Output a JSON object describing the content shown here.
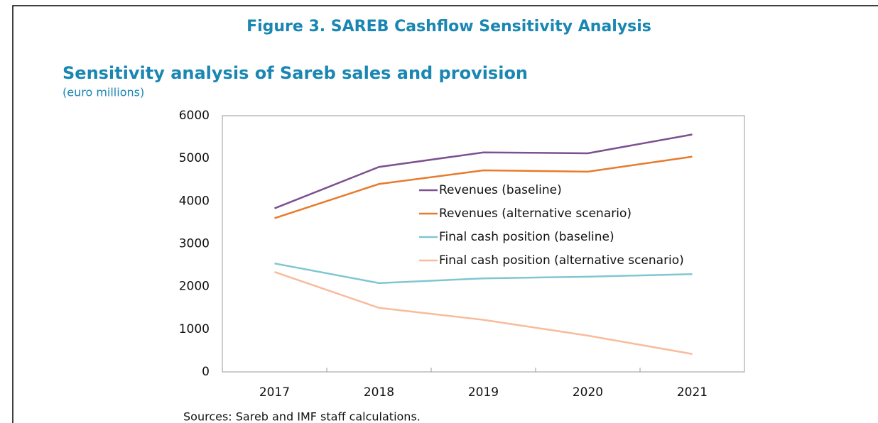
{
  "figure_title": "Figure 3. SAREB Cashflow Sensitivity Analysis",
  "source": "Sources: Sareb and IMF staff calculations.",
  "chart_data": {
    "type": "line",
    "title": "Sensitivity analysis of Sareb sales and provision",
    "subtitle": "(euro millions)",
    "categories": [
      "2017",
      "2018",
      "2019",
      "2020",
      "2021"
    ],
    "series": [
      {
        "name": "Revenues (baseline)",
        "color": "#7b5190",
        "values": [
          3830,
          4800,
          5140,
          5120,
          5560
        ]
      },
      {
        "name": "Revenues (alternative scenario)",
        "color": "#e87a2b",
        "values": [
          3600,
          4400,
          4720,
          4690,
          5040
        ]
      },
      {
        "name": "Final cash position (baseline)",
        "color": "#80c6d2",
        "values": [
          2540,
          2080,
          2190,
          2230,
          2290
        ]
      },
      {
        "name": "Final cash position (alternative scenario)",
        "color": "#f8bb9c",
        "values": [
          2340,
          1500,
          1220,
          850,
          420
        ]
      }
    ],
    "ylim": [
      0,
      6000
    ],
    "yticks": [
      0,
      1000,
      2000,
      3000,
      4000,
      5000,
      6000
    ],
    "grid": false,
    "legend": "center"
  }
}
